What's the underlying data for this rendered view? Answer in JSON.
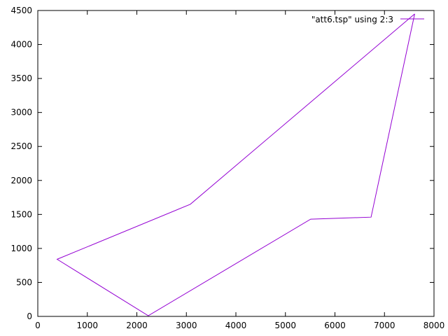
{
  "chart_data": {
    "type": "line",
    "title": "",
    "xlabel": "",
    "ylabel": "",
    "xlim": [
      0,
      8000
    ],
    "ylim": [
      0,
      4500
    ],
    "x_ticks": [
      0,
      1000,
      2000,
      3000,
      4000,
      5000,
      6000,
      7000,
      8000
    ],
    "y_ticks": [
      0,
      500,
      1000,
      1500,
      2000,
      2500,
      3000,
      3500,
      4000,
      4500
    ],
    "x_tick_labels": [
      "0",
      "1000",
      "2000",
      "3000",
      "4000",
      "5000",
      "6000",
      "7000",
      "8000"
    ],
    "y_tick_labels": [
      "0",
      "500",
      "1000",
      "1500",
      "2000",
      "2500",
      "3000",
      "3500",
      "4000",
      "4500"
    ],
    "grid": false,
    "legend_position": "top-right",
    "series": [
      {
        "name": "\"att6.tsp\" using 2:3",
        "color": "#9400d3",
        "x": [
          7610,
          6730,
          5510,
          2230,
          390,
          3080,
          7610
        ],
        "y": [
          4450,
          1460,
          1430,
          10,
          840,
          1650,
          4450
        ]
      }
    ]
  }
}
